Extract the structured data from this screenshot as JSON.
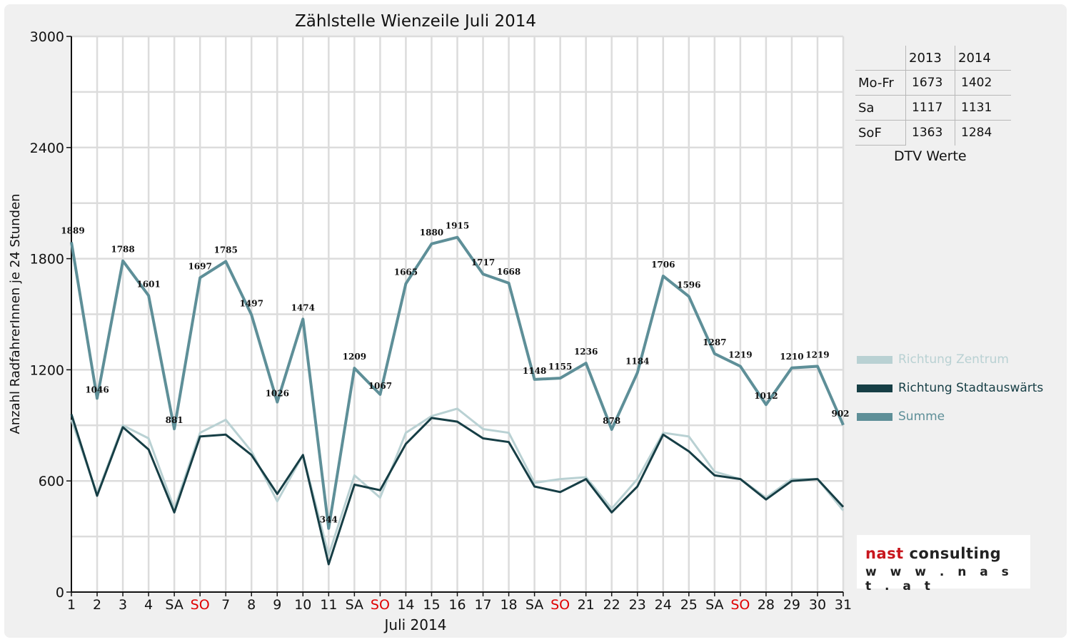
{
  "chart_data": {
    "type": "line",
    "title": "Zählstelle Wienzeile Juli 2014",
    "xlabel": "Juli 2014",
    "ylabel": "Anzahl RadfahrerInnen je 24 Stunden",
    "ylim": [
      0,
      3000
    ],
    "yticks": [
      0,
      600,
      1200,
      1800,
      2400,
      3000
    ],
    "grid": true,
    "legend_position": "right",
    "categories": [
      "1",
      "2",
      "3",
      "4",
      "SA",
      "SO",
      "7",
      "8",
      "9",
      "10",
      "11",
      "SA",
      "SO",
      "14",
      "15",
      "16",
      "17",
      "18",
      "SA",
      "SO",
      "21",
      "22",
      "23",
      "24",
      "25",
      "SA",
      "SO",
      "28",
      "29",
      "30",
      "31"
    ],
    "red_categories": [
      "SO"
    ],
    "series": [
      {
        "name": "Richtung Zentrum",
        "color": "#b9d1d3",
        "width": 2,
        "values": [
          930,
          530,
          900,
          830,
          450,
          860,
          930,
          760,
          490,
          740,
          200,
          630,
          510,
          860,
          950,
          990,
          880,
          860,
          590,
          610,
          620,
          450,
          610,
          860,
          840,
          650,
          610,
          510,
          610,
          610,
          440
        ]
      },
      {
        "name": "Richtung Stadtauswärts",
        "color": "#163e45",
        "width": 2,
        "values": [
          960,
          520,
          890,
          770,
          430,
          840,
          850,
          740,
          530,
          740,
          150,
          580,
          550,
          800,
          940,
          920,
          830,
          810,
          570,
          540,
          610,
          430,
          570,
          850,
          760,
          630,
          610,
          500,
          600,
          610,
          460
        ]
      },
      {
        "name": "Summe",
        "color": "#5e8f98",
        "width": 3,
        "values": [
          1889,
          1046,
          1788,
          1601,
          881,
          1697,
          1785,
          1497,
          1026,
          1474,
          344,
          1209,
          1067,
          1665,
          1880,
          1915,
          1717,
          1668,
          1148,
          1155,
          1236,
          878,
          1184,
          1706,
          1596,
          1287,
          1219,
          1012,
          1210,
          1219,
          902
        ]
      }
    ],
    "data_labels": [
      "1889",
      "1046",
      "1788",
      "1601",
      "881",
      "1697",
      "1785",
      "1497",
      "1026",
      "1474",
      "344",
      "1209",
      "1067",
      "1665",
      "1880",
      "1915",
      "1717",
      "1668",
      "1148",
      "1155",
      "1236",
      "878",
      "1184",
      "1706",
      "1596",
      "1287",
      "1219",
      "1012",
      "1210",
      "1219",
      "902"
    ]
  },
  "dtv_table": {
    "header": [
      "",
      "2013",
      "2014"
    ],
    "rows": [
      {
        "label": "Mo-Fr",
        "v2013": "1673",
        "v2014": "1402"
      },
      {
        "label": "Sa",
        "v2013": "1117",
        "v2014": "1131"
      },
      {
        "label": "SoF",
        "v2013": "1363",
        "v2014": "1284"
      }
    ],
    "caption": "DTV Werte"
  },
  "legend": [
    {
      "label": "Richtung Zentrum",
      "color": "#b9d1d3"
    },
    {
      "label": "Richtung Stadtauswärts",
      "color": "#163e45"
    },
    {
      "label": "Summe",
      "color": "#5e8f98"
    }
  ],
  "logo": {
    "name_part1": "nast",
    "name_part2": " consulting",
    "url": "w w w . n a s t . a t",
    "accent_color": "#c8161d"
  }
}
